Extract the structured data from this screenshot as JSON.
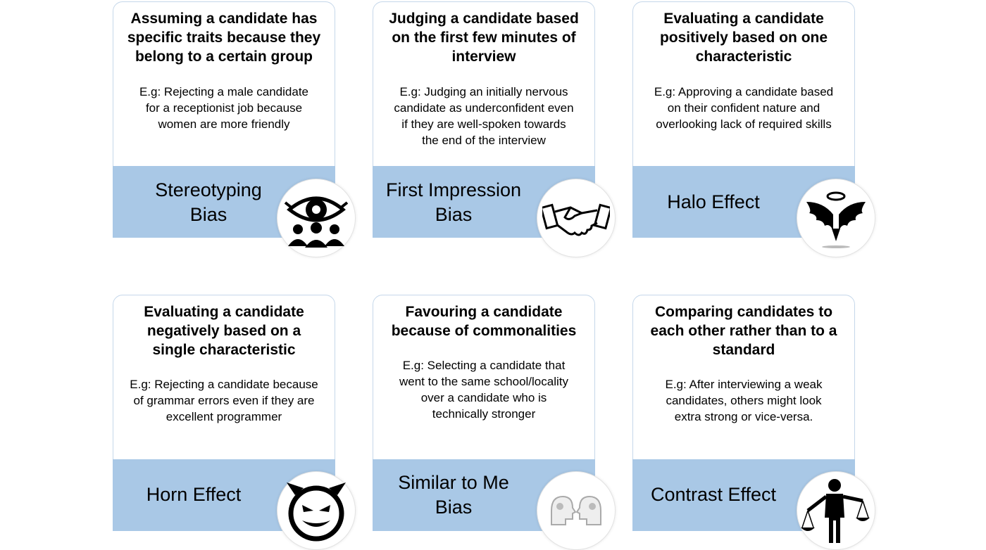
{
  "cards": [
    {
      "heading": "Assuming a candidate has\nspecific traits because they\nbelong to a certain group",
      "example": "E.g: Rejecting a male candidate\nfor a receptionist job because\nwomen are more friendly",
      "bias_name": "Stereotyping\nBias",
      "icon": "eye-crowd-icon"
    },
    {
      "heading": "Judging a candidate based\non the first few minutes of\ninterview",
      "example": "E.g: Judging an initially nervous\ncandidate as underconfident even\nif they are well-spoken towards\nthe end of the interview",
      "bias_name": "First Impression\nBias",
      "icon": "handshake-icon"
    },
    {
      "heading": "Evaluating a candidate\npositively based on one\ncharacteristic",
      "example": "E.g: Approving a candidate based\non their confident nature and\noverlooking lack of required skills",
      "bias_name": "Halo Effect",
      "icon": "angel-wings-icon"
    },
    {
      "heading": "Evaluating a candidate\nnegatively based on a\nsingle characteristic",
      "example": "E.g: Rejecting a candidate because\nof grammar errors even if they are\nexcellent programmer",
      "bias_name": "Horn Effect",
      "icon": "devil-face-icon"
    },
    {
      "heading": "Favouring a candidate\nbecause of commonalities",
      "example": "E.g: Selecting a candidate that\nwent to the same school/locality\nover a candidate who is\ntechnically stronger",
      "bias_name": "Similar to Me\nBias",
      "icon": "two-heads-icon"
    },
    {
      "heading": "Comparing candidates to\neach other rather than to a\nstandard",
      "example": "E.g: After interviewing a weak\ncandidates, others might look\nextra strong or vice-versa.",
      "bias_name": "Contrast Effect",
      "icon": "person-scales-icon"
    }
  ],
  "colors": {
    "band": "#a9c8e6",
    "card_border": "#c5d7ea",
    "text": "#000000"
  }
}
